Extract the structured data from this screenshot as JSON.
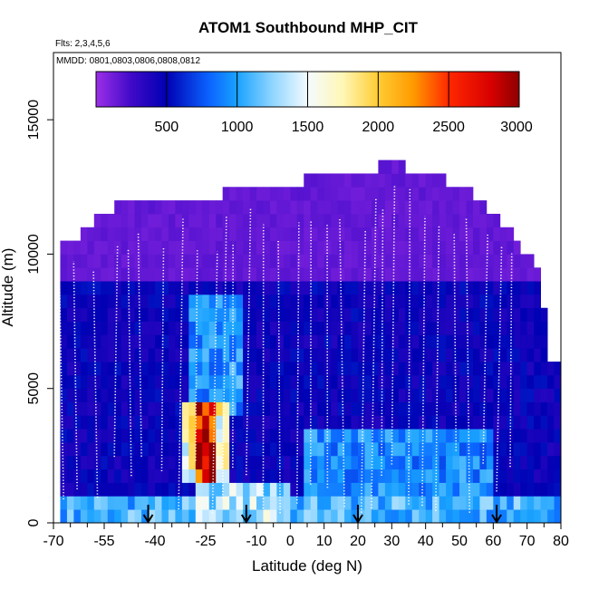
{
  "chart_data": {
    "type": "heatmap",
    "title": "ATOM1 Southbound MHP_CIT",
    "subtitle_flights": "Flts: 2,3,4,5,6",
    "subtitle_dates": "MMDD: 0801,0803,0806,0808,0812",
    "xlabel": "Latitude (deg N)",
    "ylabel": "Altitude (m)",
    "xlim": [
      -70,
      80
    ],
    "ylim": [
      0,
      17500
    ],
    "x_ticks": [
      -70,
      -55,
      -40,
      -25,
      -10,
      0,
      10,
      20,
      30,
      40,
      50,
      60,
      70,
      80
    ],
    "x_tick_labels": [
      "-70",
      "-55",
      "-40",
      "-25",
      "-10",
      "0",
      "10",
      "20",
      "30",
      "40",
      "50",
      "60",
      "70",
      "80"
    ],
    "x_minor_ticks": [
      -65,
      -60,
      -50,
      -45,
      -35,
      -30,
      -20,
      -15,
      -5,
      5,
      15,
      25,
      35,
      45,
      55,
      65,
      75
    ],
    "y_ticks": [
      0,
      5000,
      10000,
      15000
    ],
    "y_tick_labels": [
      "0",
      "5000",
      "10000",
      "15000"
    ],
    "colorbar": {
      "min": 0,
      "max": 3000,
      "ticks": [
        500,
        1000,
        1500,
        2000,
        2500,
        3000
      ],
      "tick_labels": [
        "500",
        "1000",
        "1500",
        "2000",
        "2500",
        "3000"
      ],
      "colors": [
        {
          "v": 0,
          "c": "#9d2fe8"
        },
        {
          "v": 250,
          "c": "#3f0ac8"
        },
        {
          "v": 500,
          "c": "#0000b3"
        },
        {
          "v": 800,
          "c": "#0b63ff"
        },
        {
          "v": 1000,
          "c": "#19a2ff"
        },
        {
          "v": 1250,
          "c": "#8fd5ff"
        },
        {
          "v": 1500,
          "c": "#f4fbff"
        },
        {
          "v": 1750,
          "c": "#fff7b5"
        },
        {
          "v": 2000,
          "c": "#ffcc33"
        },
        {
          "v": 2250,
          "c": "#ff9a00"
        },
        {
          "v": 2500,
          "c": "#ff2800"
        },
        {
          "v": 2800,
          "c": "#d80000"
        },
        {
          "v": 3000,
          "c": "#8c0000"
        }
      ]
    },
    "arrows_latitude": [
      -42,
      -13,
      20,
      61
    ],
    "altitude_ceiling": [
      {
        "lat": -68,
        "alt": 10500
      },
      {
        "lat": -63,
        "alt": 10500
      },
      {
        "lat": -59,
        "alt": 11000
      },
      {
        "lat": -56,
        "alt": 11500
      },
      {
        "lat": -48,
        "alt": 12000
      },
      {
        "lat": -25,
        "alt": 12000
      },
      {
        "lat": -15,
        "alt": 12500
      },
      {
        "lat": 0,
        "alt": 12500
      },
      {
        "lat": 8,
        "alt": 13000
      },
      {
        "lat": 25,
        "alt": 13000
      },
      {
        "lat": 28,
        "alt": 13500
      },
      {
        "lat": 38,
        "alt": 13000
      },
      {
        "lat": 50,
        "alt": 12500
      },
      {
        "lat": 60,
        "alt": 11500
      },
      {
        "lat": 66,
        "alt": 10500
      },
      {
        "lat": 72,
        "alt": 9500
      },
      {
        "lat": 76,
        "alt": 6000
      },
      {
        "lat": 79,
        "alt": 6000
      }
    ],
    "concentration_regions": [
      {
        "lat_range": [
          -68,
          79
        ],
        "alt_range": [
          0,
          1000
        ],
        "value": 1050
      },
      {
        "lat_range": [
          -28,
          0
        ],
        "alt_range": [
          0,
          1500
        ],
        "value": 1300
      },
      {
        "lat_range": [
          5,
          60
        ],
        "alt_range": [
          0,
          3500
        ],
        "value": 900
      },
      {
        "lat_range": [
          -32,
          -18
        ],
        "alt_range": [
          1500,
          4500
        ],
        "value": 1600
      },
      {
        "lat_range": [
          -27,
          -22
        ],
        "alt_range": [
          1500,
          4500
        ],
        "value": 2600
      },
      {
        "lat_range": [
          -30,
          -15
        ],
        "alt_range": [
          4000,
          8500
        ],
        "value": 950
      },
      {
        "lat_range": [
          -68,
          79
        ],
        "alt_range": [
          0,
          9000
        ],
        "value": 450
      },
      {
        "lat_range": [
          -68,
          79
        ],
        "alt_range": [
          9000,
          13500
        ],
        "value": 150
      }
    ],
    "flight_profile_longitudes": [
      -67,
      -63,
      -57,
      -52,
      -47,
      -44,
      -38,
      -33,
      -28,
      -23,
      -20,
      -17,
      -13,
      -8,
      -3,
      2,
      6,
      11,
      16,
      21,
      24,
      27,
      30,
      35,
      39,
      43,
      49,
      53,
      57,
      61,
      65
    ]
  }
}
